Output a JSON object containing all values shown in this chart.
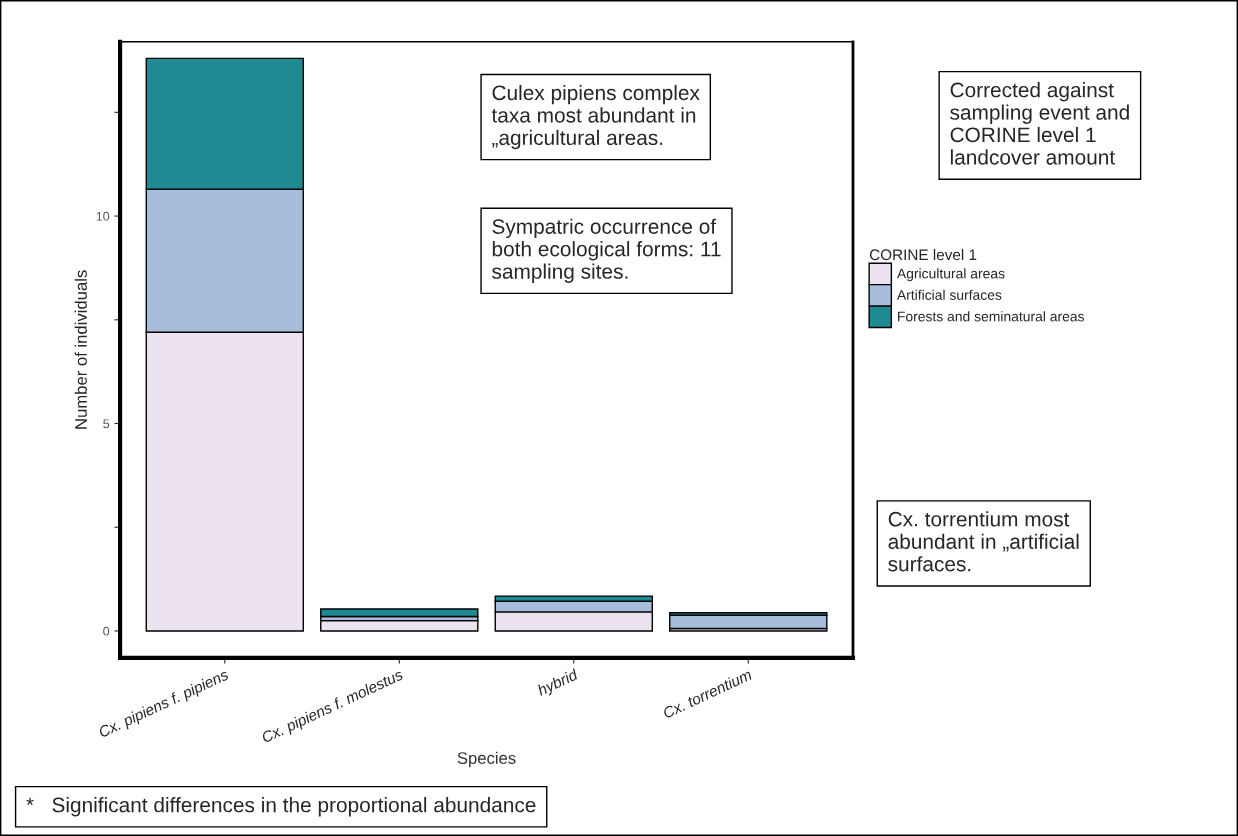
{
  "chart_data": {
    "type": "bar",
    "stacked": true,
    "xlabel": "Species",
    "ylabel": "Number of individuals",
    "legend_title": "CORINE level 1",
    "categories": [
      "Cx. pipiens f. pipiens",
      "Cx. pipiens f. molestus",
      "hybrid",
      "Cx. torrentium"
    ],
    "series": [
      {
        "name": "Agricultural areas",
        "color": "#ede2f0",
        "values": [
          7.2,
          0.25,
          0.46,
          0.06
        ]
      },
      {
        "name": "Artificial surfaces",
        "color": "#a8bcdb",
        "values": [
          3.45,
          0.1,
          0.26,
          0.32
        ]
      },
      {
        "name": "Forests and seminatural areas",
        "color": "#1f8a92",
        "values": [
          3.15,
          0.18,
          0.12,
          0.06
        ]
      }
    ],
    "ylim": [
      -0.65,
      14.2
    ],
    "yticks": [
      0,
      {
        "value": 2.5,
        "label": null
      },
      5,
      {
        "value": 7.5,
        "label": null
      },
      10,
      {
        "value": 12.5,
        "label": null
      }
    ],
    "grid": false,
    "legend": "right",
    "annotations": [
      "Culex pipiens complex taxa most abundant in „agricultural areas.",
      "Sympatric occurrence of both ecological forms: 11 sampling sites.",
      "Corrected against sampling event and CORINE level 1 landcover amount",
      "Cx. torrentium most abundant in „artificial surfaces.",
      "*   Significant differences in the proportional abundance"
    ]
  }
}
